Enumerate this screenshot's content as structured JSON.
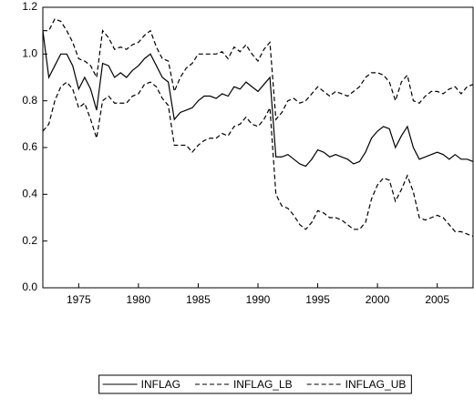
{
  "chart_data": {
    "type": "line",
    "x": [
      1972,
      1972.5,
      1973,
      1973.5,
      1974,
      1974.5,
      1975,
      1975.5,
      1976,
      1976.5,
      1977,
      1977.5,
      1978,
      1978.5,
      1979,
      1979.5,
      1980,
      1980.5,
      1981,
      1981.5,
      1982,
      1982.5,
      1983,
      1983.5,
      1984,
      1984.5,
      1985,
      1985.5,
      1986,
      1986.5,
      1987,
      1987.5,
      1988,
      1988.5,
      1989,
      1989.5,
      1990,
      1990.5,
      1991,
      1991.5,
      1992,
      1992.5,
      1993,
      1993.5,
      1994,
      1994.5,
      1995,
      1995.5,
      1996,
      1996.5,
      1997,
      1997.5,
      1998,
      1998.5,
      1999,
      1999.5,
      2000,
      2000.5,
      2001,
      2001.5,
      2002,
      2002.5,
      2003,
      2003.5,
      2004,
      2004.5,
      2005,
      2005.5,
      2006,
      2006.5,
      2007,
      2007.5,
      2008
    ],
    "series": [
      {
        "name": "INFLAG",
        "color": "#000000",
        "dash": "solid",
        "values": [
          1.1,
          0.9,
          0.95,
          1.0,
          1.0,
          0.95,
          0.85,
          0.9,
          0.85,
          0.76,
          0.96,
          0.95,
          0.9,
          0.92,
          0.9,
          0.93,
          0.95,
          0.98,
          1.0,
          0.95,
          0.9,
          0.88,
          0.72,
          0.75,
          0.76,
          0.77,
          0.8,
          0.82,
          0.82,
          0.81,
          0.83,
          0.82,
          0.86,
          0.85,
          0.88,
          0.86,
          0.84,
          0.87,
          0.9,
          0.56,
          0.56,
          0.57,
          0.55,
          0.53,
          0.52,
          0.55,
          0.59,
          0.58,
          0.56,
          0.57,
          0.56,
          0.55,
          0.53,
          0.54,
          0.58,
          0.64,
          0.67,
          0.69,
          0.68,
          0.6,
          0.65,
          0.69,
          0.6,
          0.55,
          0.56,
          0.57,
          0.58,
          0.57,
          0.55,
          0.57,
          0.55,
          0.55,
          0.54
        ]
      },
      {
        "name": "INFLAG_LB",
        "color": "#000000",
        "dash": "dashed",
        "values": [
          0.67,
          0.7,
          0.8,
          0.86,
          0.88,
          0.85,
          0.77,
          0.79,
          0.72,
          0.64,
          0.8,
          0.82,
          0.79,
          0.79,
          0.79,
          0.82,
          0.83,
          0.87,
          0.88,
          0.86,
          0.81,
          0.78,
          0.61,
          0.61,
          0.61,
          0.58,
          0.61,
          0.63,
          0.64,
          0.64,
          0.66,
          0.65,
          0.69,
          0.7,
          0.73,
          0.7,
          0.69,
          0.72,
          0.77,
          0.4,
          0.35,
          0.34,
          0.31,
          0.27,
          0.25,
          0.28,
          0.33,
          0.32,
          0.3,
          0.3,
          0.29,
          0.27,
          0.25,
          0.25,
          0.28,
          0.38,
          0.44,
          0.47,
          0.46,
          0.37,
          0.42,
          0.48,
          0.41,
          0.3,
          0.29,
          0.3,
          0.31,
          0.3,
          0.27,
          0.24,
          0.24,
          0.23,
          0.22
        ]
      },
      {
        "name": "INFLAG_UB",
        "color": "#000000",
        "dash": "dashed",
        "values": [
          1.1,
          1.1,
          1.15,
          1.14,
          1.1,
          1.05,
          0.98,
          0.97,
          0.95,
          0.9,
          1.1,
          1.07,
          1.02,
          1.03,
          1.02,
          1.04,
          1.05,
          1.08,
          1.1,
          1.03,
          0.98,
          0.97,
          0.84,
          0.9,
          0.94,
          0.96,
          1.0,
          1.0,
          1.0,
          1.0,
          1.01,
          0.98,
          1.03,
          1.01,
          1.04,
          1.0,
          0.97,
          1.02,
          1.05,
          0.72,
          0.75,
          0.8,
          0.81,
          0.79,
          0.8,
          0.83,
          0.86,
          0.84,
          0.82,
          0.84,
          0.83,
          0.82,
          0.84,
          0.86,
          0.9,
          0.92,
          0.92,
          0.91,
          0.88,
          0.8,
          0.88,
          0.91,
          0.8,
          0.79,
          0.82,
          0.84,
          0.84,
          0.83,
          0.85,
          0.86,
          0.83,
          0.86,
          0.87
        ]
      }
    ],
    "xlim": [
      1972,
      2008
    ],
    "xticks": [
      1975,
      1980,
      1985,
      1990,
      1995,
      2000,
      2005
    ],
    "ylim": [
      0,
      1.2
    ],
    "yticks": [
      {
        "value": 0,
        "label": "0.0"
      },
      {
        "value": 0.2,
        "label": "0.2"
      },
      {
        "value": 0.4,
        "label": "0.4"
      },
      {
        "value": 0.6,
        "label": "0.6"
      },
      {
        "value": 0.8,
        "label": "0.8"
      },
      {
        "value": 1,
        "label": "1.0"
      },
      {
        "value": 1.2,
        "label": "1.2"
      }
    ],
    "legend": "bottom"
  }
}
